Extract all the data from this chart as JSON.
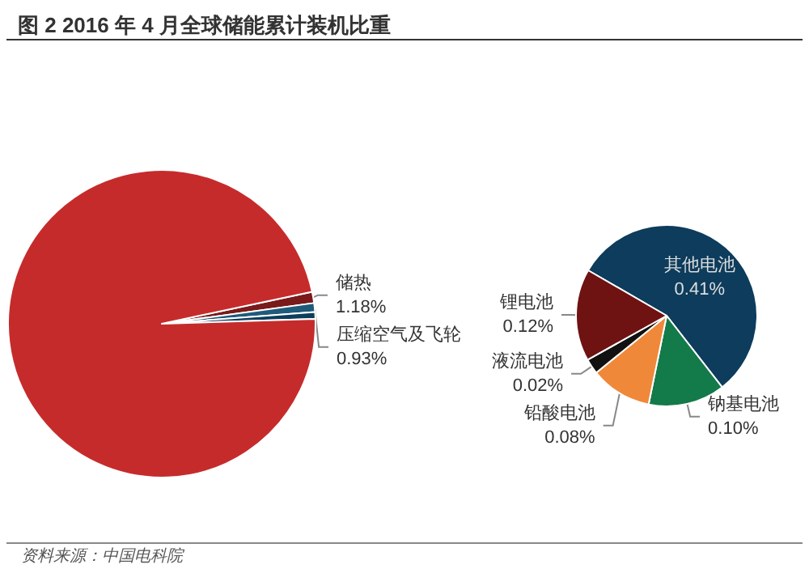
{
  "chart_data": [
    {
      "type": "pie",
      "title": "图 2 2016 年 4 月全球储能累计装机比重",
      "annotations": [
        "资料来源：中国电科院"
      ],
      "categories": [
        "储热",
        "压缩空气及飞轮",
        null,
        null
      ],
      "values": [
        1.18,
        0.93,
        0.73,
        97.16
      ],
      "value_labels": [
        "1.18%",
        "0.93%",
        null,
        null
      ],
      "colors": [
        "#7a1a1a",
        "#1f5a7a",
        "#0d3c5c",
        "#c62b2b"
      ]
    },
    {
      "type": "pie",
      "categories": [
        "其他电池",
        "钠基电池",
        "铅酸电池",
        "液流电池",
        "锂电池"
      ],
      "values": [
        0.41,
        0.1,
        0.08,
        0.02,
        0.12
      ],
      "value_labels": [
        "0.41%",
        "0.10%",
        "0.08%",
        "0.02%",
        "0.12%"
      ],
      "colors": [
        "#0d3c5c",
        "#137a4a",
        "#f0883a",
        "#111111",
        "#6e1212"
      ]
    }
  ]
}
